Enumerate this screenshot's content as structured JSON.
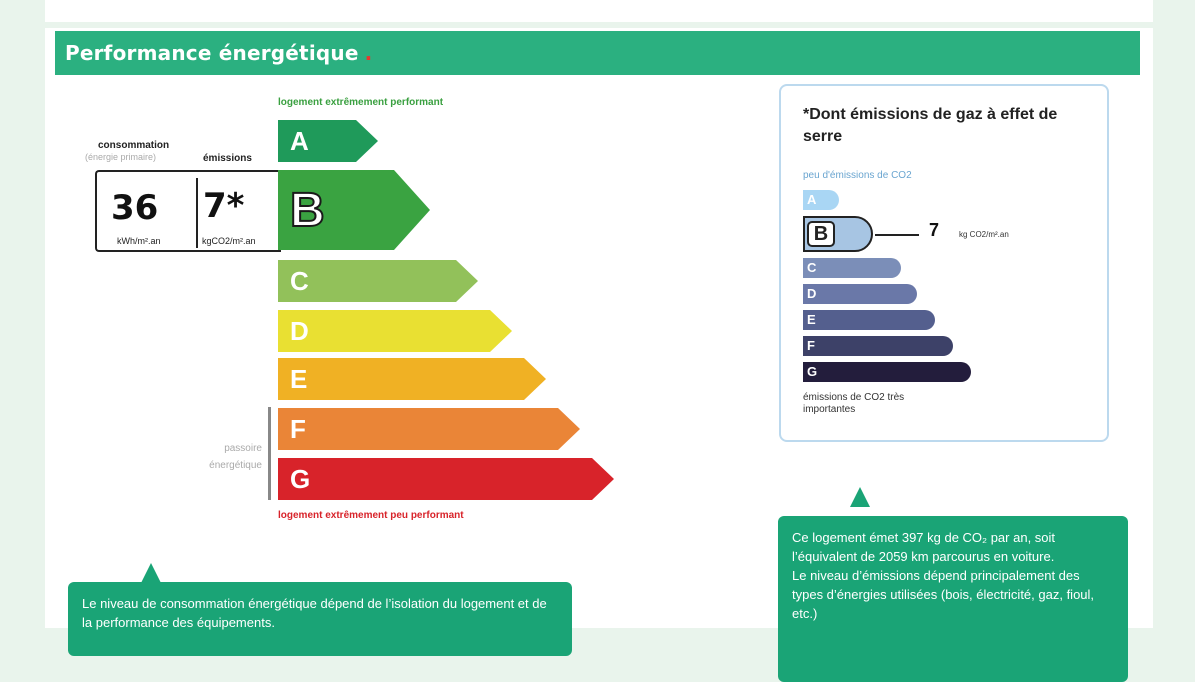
{
  "section": {
    "title": "Performance énergétique",
    "dot": "."
  },
  "dpe": {
    "top_label": "logement extrêmement performant",
    "bottom_label": "logement extrêmement peu performant",
    "consumption_label": "consommation",
    "consumption_sub": "(énergie primaire)",
    "emissions_label": "émissions",
    "consumption_value": "36",
    "consumption_unit": "kWh/m².an",
    "emissions_value": "7*",
    "emissions_unit": "kgCO2/m².an",
    "active_class": "B",
    "passoire_label": "passoire énergétique",
    "classes": [
      {
        "letter": "A",
        "color": "#1f9a5a"
      },
      {
        "letter": "B",
        "color": "#3aa341"
      },
      {
        "letter": "C",
        "color": "#92c15a"
      },
      {
        "letter": "D",
        "color": "#e9e032"
      },
      {
        "letter": "E",
        "color": "#f0b124"
      },
      {
        "letter": "F",
        "color": "#ea8537"
      },
      {
        "letter": "G",
        "color": "#d8232a"
      }
    ]
  },
  "ges": {
    "title": "*Dont émissions de gaz à effet de serre",
    "top_label": "peu d'émissions de CO2",
    "bottom_label": "émissions de CO2 très importantes",
    "active_class": "B",
    "value": "7",
    "unit": "kg CO2/m².an",
    "classes": [
      {
        "letter": "A",
        "color": "#a9d6f4"
      },
      {
        "letter": "B",
        "color": "#a7c5e3"
      },
      {
        "letter": "C",
        "color": "#7b8eb8"
      },
      {
        "letter": "D",
        "color": "#6a78a8"
      },
      {
        "letter": "E",
        "color": "#545f8e"
      },
      {
        "letter": "F",
        "color": "#3d4168"
      },
      {
        "letter": "G",
        "color": "#231d3c"
      }
    ]
  },
  "tooltips": {
    "consumption": "Le niveau de consommation énergétique dépend de l’isolation du logement et de la performance des équipements.",
    "emissions_line1": "Ce logement émet 397 kg de CO₂ par an, soit l’équivalent de 2059  km parcourus en voiture.",
    "emissions_line2": "Le niveau d’émissions dépend principalement des types d’énergies utilisées (bois, électricité, gaz, fioul, etc.)"
  }
}
